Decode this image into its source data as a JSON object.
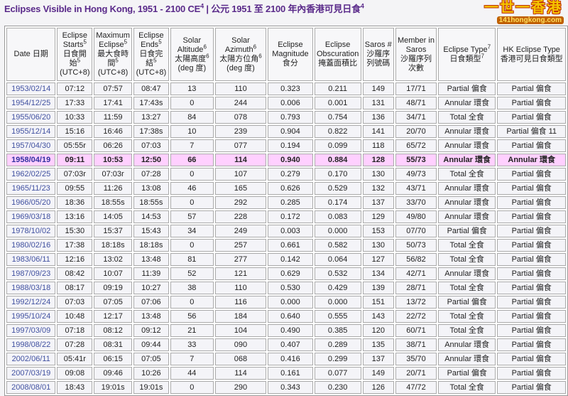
{
  "title": {
    "text": "Eclipses Visible in Hong Kong, 1951 - 2100 CE",
    "sup1": "4",
    "sep": " | 公元 1951 至 2100 年內香港可見日食",
    "sup2": "4"
  },
  "logo": {
    "main": "一世一香港",
    "sub": "141hongkong.com"
  },
  "colors": {
    "title": "#5a2a8a",
    "highlight_row": "#ffd0ff",
    "date_link": "#4050a0"
  },
  "headers": [
    {
      "text": "Date 日期"
    },
    {
      "text": "Eclipse Starts",
      "sup": "5",
      "text2": "日食開始",
      "sup2": "5",
      "text3": "(UTC+8)"
    },
    {
      "text": "Maximum Eclipse",
      "sup": "5",
      "text2": "最大食時間",
      "sup2": "5",
      "text3": "(UTC+8)"
    },
    {
      "text": "Eclipse Ends",
      "sup": "5",
      "text2": "日食完結",
      "sup2": "5",
      "text3": "(UTC+8)"
    },
    {
      "text": "Solar Altitude",
      "sup": "6",
      "text2": "太陽高度",
      "sup2": "6",
      "text3": "(deg 度)"
    },
    {
      "text": "Solar Azimuth",
      "sup": "6",
      "text2": "太陽方位角",
      "sup2": "6",
      "text3": "(deg 度)"
    },
    {
      "text": "Eclipse Magnitude",
      "text2": "食分"
    },
    {
      "text": "Eclipse Obscuration",
      "text2": "掩蓋面積比"
    },
    {
      "text": "Saros #",
      "text2": "沙羅序列號碼"
    },
    {
      "text": "Member in Saros",
      "text2": "沙羅序列次數"
    },
    {
      "text": "Eclipse Type",
      "sup": "7",
      "text2": "日食類型",
      "sup2": "7"
    },
    {
      "text": "HK Eclipse Type",
      "text2": "香港可見日食類型"
    }
  ],
  "highlight_date": "1958/04/19",
  "rows": [
    [
      "1953/02/14",
      "07:12",
      "07:57",
      "08:47",
      "13",
      "110",
      "0.323",
      "0.211",
      "149",
      "17/71",
      "Partial 偏食",
      "Partial 偏食"
    ],
    [
      "1954/12/25",
      "17:33",
      "17:41",
      "17:43s",
      "0",
      "244",
      "0.006",
      "0.001",
      "131",
      "48/71",
      "Annular 環食",
      "Partial 偏食"
    ],
    [
      "1955/06/20",
      "10:33",
      "11:59",
      "13:27",
      "84",
      "078",
      "0.793",
      "0.754",
      "136",
      "34/71",
      "Total 全食",
      "Partial 偏食"
    ],
    [
      "1955/12/14",
      "15:16",
      "16:46",
      "17:38s",
      "10",
      "239",
      "0.904",
      "0.822",
      "141",
      "20/70",
      "Annular 環食",
      "Partial 偏食 11"
    ],
    [
      "1957/04/30",
      "05:55r",
      "06:26",
      "07:03",
      "7",
      "077",
      "0.194",
      "0.099",
      "118",
      "65/72",
      "Annular 環食",
      "Partial 偏食"
    ],
    [
      "1958/04/19",
      "09:11",
      "10:53",
      "12:50",
      "66",
      "114",
      "0.940",
      "0.884",
      "128",
      "55/73",
      "Annular 環食",
      "Annular 環食"
    ],
    [
      "1962/02/25",
      "07:03r",
      "07:03r",
      "07:28",
      "0",
      "107",
      "0.279",
      "0.170",
      "130",
      "49/73",
      "Total 全食",
      "Partial 偏食"
    ],
    [
      "1965/11/23",
      "09:55",
      "11:26",
      "13:08",
      "46",
      "165",
      "0.626",
      "0.529",
      "132",
      "43/71",
      "Annular 環食",
      "Partial 偏食"
    ],
    [
      "1966/05/20",
      "18:36",
      "18:55s",
      "18:55s",
      "0",
      "292",
      "0.285",
      "0.174",
      "137",
      "33/70",
      "Annular 環食",
      "Partial 偏食"
    ],
    [
      "1969/03/18",
      "13:16",
      "14:05",
      "14:53",
      "57",
      "228",
      "0.172",
      "0.083",
      "129",
      "49/80",
      "Annular 環食",
      "Partial 偏食"
    ],
    [
      "1978/10/02",
      "15:30",
      "15:37",
      "15:43",
      "34",
      "249",
      "0.003",
      "0.000",
      "153",
      "07/70",
      "Partial 偏食",
      "Partial 偏食"
    ],
    [
      "1980/02/16",
      "17:38",
      "18:18s",
      "18:18s",
      "0",
      "257",
      "0.661",
      "0.582",
      "130",
      "50/73",
      "Total 全食",
      "Partial 偏食"
    ],
    [
      "1983/06/11",
      "12:16",
      "13:02",
      "13:48",
      "81",
      "277",
      "0.142",
      "0.064",
      "127",
      "56/82",
      "Total 全食",
      "Partial 偏食"
    ],
    [
      "1987/09/23",
      "08:42",
      "10:07",
      "11:39",
      "52",
      "121",
      "0.629",
      "0.532",
      "134",
      "42/71",
      "Annular 環食",
      "Partial 偏食"
    ],
    [
      "1988/03/18",
      "08:17",
      "09:19",
      "10:27",
      "38",
      "110",
      "0.530",
      "0.429",
      "139",
      "28/71",
      "Total 全食",
      "Partial 偏食"
    ],
    [
      "1992/12/24",
      "07:03",
      "07:05",
      "07:06",
      "0",
      "116",
      "0.000",
      "0.000",
      "151",
      "13/72",
      "Partial 偏食",
      "Partial 偏食"
    ],
    [
      "1995/10/24",
      "10:48",
      "12:17",
      "13:48",
      "56",
      "184",
      "0.640",
      "0.555",
      "143",
      "22/72",
      "Total 全食",
      "Partial 偏食"
    ],
    [
      "1997/03/09",
      "07:18",
      "08:12",
      "09:12",
      "21",
      "104",
      "0.490",
      "0.385",
      "120",
      "60/71",
      "Total 全食",
      "Partial 偏食"
    ],
    [
      "1998/08/22",
      "07:28",
      "08:31",
      "09:44",
      "33",
      "090",
      "0.407",
      "0.289",
      "135",
      "38/71",
      "Annular 環食",
      "Partial 偏食"
    ],
    [
      "2002/06/11",
      "05:41r",
      "06:15",
      "07:05",
      "7",
      "068",
      "0.416",
      "0.299",
      "137",
      "35/70",
      "Annular 環食",
      "Partial 偏食"
    ],
    [
      "2007/03/19",
      "09:08",
      "09:46",
      "10:26",
      "44",
      "114",
      "0.161",
      "0.077",
      "149",
      "20/71",
      "Partial 偏食",
      "Partial 偏食"
    ],
    [
      "2008/08/01",
      "18:43",
      "19:01s",
      "19:01s",
      "0",
      "290",
      "0.343",
      "0.230",
      "126",
      "47/72",
      "Total 全食",
      "Partial 偏食"
    ]
  ]
}
